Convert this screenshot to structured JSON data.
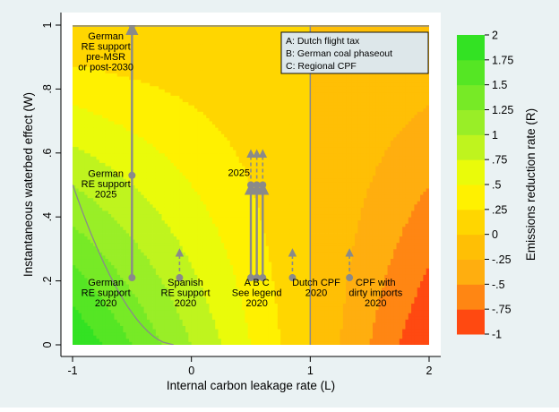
{
  "chart_data": {
    "type": "heatmap",
    "xlabel": "Internal carbon leakage rate (L)",
    "ylabel": "Instantaneous waterbed effect (W)",
    "colorbar_label": "Emissions reduction rate (R)",
    "xlim": [
      -1,
      2
    ],
    "ylim": [
      0,
      1
    ],
    "x_ticks": [
      "-1",
      "0",
      "1",
      "2"
    ],
    "y_ticks": [
      "0",
      ".2",
      ".4",
      ".6",
      ".8",
      "1"
    ],
    "colorbar_ticks": [
      "2",
      "1.75",
      "1.5",
      "1.25",
      "1",
      ".75",
      ".5",
      ".25",
      "0",
      "-.25",
      "-.5",
      "-.75",
      "-1"
    ],
    "colorbar_range": [
      -1,
      2
    ],
    "color_low": "#ff2a10",
    "color_mid": "#ffff00",
    "color_high": "#22e022",
    "reference_line_x": 1,
    "legend": {
      "position": "top-right",
      "items": [
        "A: Dutch flight tax",
        "B: German coal phaseout",
        "C: Regional CPF"
      ]
    },
    "arrows": [
      {
        "x": -0.5,
        "y_from": 0.21,
        "y_to": 1.0,
        "style": "solid"
      },
      {
        "x": -0.5,
        "y_from": 0.53,
        "y_to": 0.53,
        "style": "solid"
      },
      {
        "x": 0.5,
        "y_from": 0.21,
        "y_to": 0.5,
        "style": "solid"
      },
      {
        "x": 0.55,
        "y_from": 0.21,
        "y_to": 0.5,
        "style": "solid"
      },
      {
        "x": 0.6,
        "y_from": 0.21,
        "y_to": 0.5,
        "style": "solid"
      },
      {
        "x": 0.5,
        "y_from": 0.5,
        "y_to": 0.61,
        "style": "dashed"
      },
      {
        "x": 0.55,
        "y_from": 0.5,
        "y_to": 0.61,
        "style": "dashed"
      },
      {
        "x": 0.6,
        "y_from": 0.5,
        "y_to": 0.61,
        "style": "dashed"
      },
      {
        "x": -0.1,
        "y_from": 0.21,
        "y_to": 0.3,
        "style": "dashed"
      },
      {
        "x": 0.85,
        "y_from": 0.21,
        "y_to": 0.3,
        "style": "dashed"
      },
      {
        "x": 1.33,
        "y_from": 0.21,
        "y_to": 0.3,
        "style": "dashed"
      }
    ],
    "annotations": [
      {
        "text": [
          "German",
          "RE support",
          "pre-MSR",
          "or post-2030"
        ],
        "x": -0.72,
        "y": 0.955
      },
      {
        "text": [
          "German",
          "RE support",
          "2025"
        ],
        "x": -0.72,
        "y": 0.525
      },
      {
        "text": [
          "2025"
        ],
        "x": 0.4,
        "y": 0.528
      },
      {
        "text": [
          "A B C",
          "See legend",
          "2020"
        ],
        "x": 0.55,
        "y": 0.185
      },
      {
        "text": [
          "German",
          "RE support",
          "2020"
        ],
        "x": -0.72,
        "y": 0.185
      },
      {
        "text": [
          "Spanish",
          "RE support",
          "2020"
        ],
        "x": -0.05,
        "y": 0.185
      },
      {
        "text": [
          "Dutch CPF",
          "2020"
        ],
        "x": 1.05,
        "y": 0.185
      },
      {
        "text": [
          "CPF with",
          "dirty imports",
          "2020"
        ],
        "x": 1.55,
        "y": 0.185
      }
    ]
  }
}
